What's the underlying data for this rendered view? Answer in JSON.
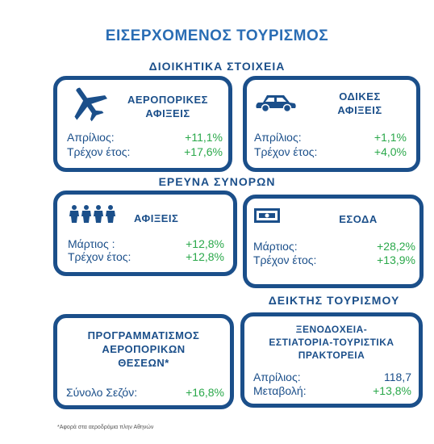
{
  "title": "ΕΙΣΕΡΧΟΜΕΝΟΣ ΤΟΥΡΙΣΜΟΣ",
  "sections": {
    "admin": "ΔΙΟΙΚΗΤΙΚΑ ΣΤΟΙΧΕΙΑ",
    "border": "ΕΡΕΥΝΑ ΣΥΝΟΡΩΝ",
    "index": "ΔΕΙΚΤΗΣ ΤΟΥΡΙΣΜΟΥ"
  },
  "cards": {
    "air": {
      "icon": "airplane-icon",
      "title_line1": "ΑΕΡΟΠΟΡΙΚΕΣ",
      "title_line2": "ΑΦΙΞΕΙΣ",
      "rows": [
        {
          "label": "Απρίλιος:",
          "value": "+11,1%"
        },
        {
          "label": "Τρέχον έτος:",
          "value": "+17,6%"
        }
      ]
    },
    "road": {
      "icon": "car-icon",
      "title_line1": "ΟΔΙΚΕΣ",
      "title_line2": "ΑΦΙΞΕΙΣ",
      "rows": [
        {
          "label": "Απρίλιος:",
          "value": "+1,1%"
        },
        {
          "label": "Τρέχον έτος:",
          "value": "+4,0%"
        }
      ]
    },
    "arrivals": {
      "icon": "people-icon",
      "title": "ΑΦΙΞΕΙΣ",
      "rows": [
        {
          "label": "Μάρτιος :",
          "value": "+12,8%"
        },
        {
          "label": "Τρέχον έτος:",
          "value": "+12,8%"
        }
      ]
    },
    "receipts": {
      "icon": "money-icon",
      "title": "ΕΣΟΔΑ",
      "rows": [
        {
          "label": "Μάρτιος:",
          "value": "+28,2%"
        },
        {
          "label": "Τρέχον έτος:",
          "value": "+13,9%"
        }
      ]
    },
    "seats": {
      "title_line1": "ΠΡΟΓΡΑΜΜΑΤΙΣΜΟΣ",
      "title_line2": "ΑΕΡΟΠΟΡΙΚΩΝ",
      "title_line3": "ΘΕΣΕΩΝ*",
      "rows": [
        {
          "label": "Σύνολο Σεζόν:",
          "value": "+16,8%"
        }
      ]
    },
    "hotels": {
      "title_line1": "ΞΕΝΟΔΟΧΕΙΑ-",
      "title_line2": "ΕΣΤΙΑΤΟΡΙΑ-ΤΟΥΡΙΣΤΙΚΑ",
      "title_line3": "ΠΡΑΚΤΟΡΕΙΑ",
      "rows": [
        {
          "label": "Απρίλιος:",
          "value": "118,7"
        },
        {
          "label": "Μεταβολή:",
          "value": "+13,8%"
        }
      ]
    }
  },
  "footnote": "*Αφορά στα αεροδρόμια πλην Αθηνών",
  "colors": {
    "title": "#2a6db4",
    "primary": "#1b4f8a",
    "positive": "#2aa84a"
  }
}
